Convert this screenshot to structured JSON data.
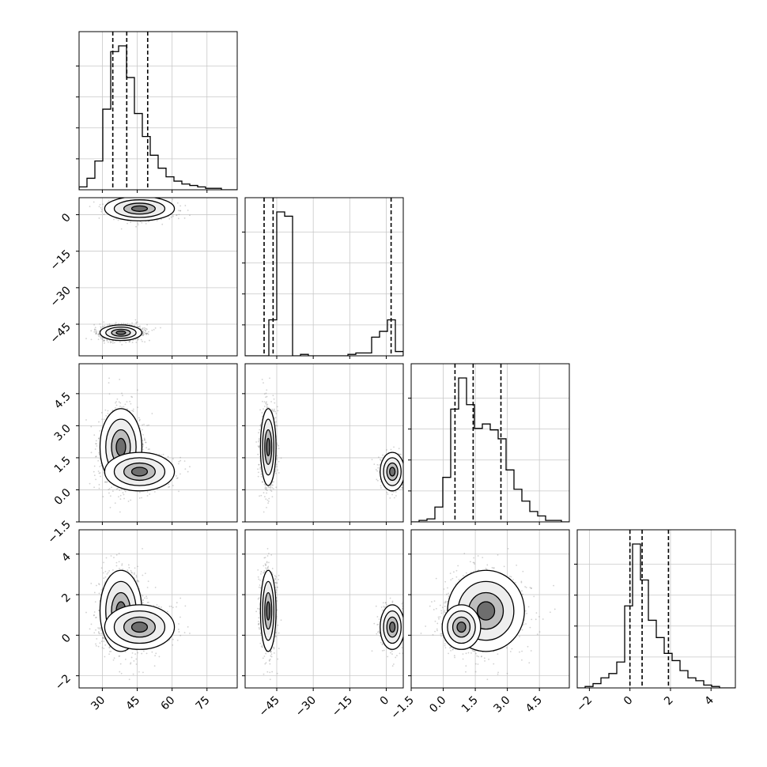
{
  "chart_data": {
    "type": "corner",
    "grid": true,
    "parameters": [
      {
        "index": 0,
        "range": [
          20,
          88
        ],
        "ticks": [
          30,
          45,
          60,
          75
        ],
        "tick_labels": [
          "30",
          "45",
          "60",
          "75"
        ],
        "quantiles": [
          34.5,
          40.5,
          49.5
        ],
        "histogram": {
          "x_start": 20.0,
          "bin_width": 3.4,
          "counts": [
            2,
            8,
            20,
            56,
            96,
            100,
            78,
            53,
            37,
            24,
            15,
            9,
            6,
            4,
            3,
            2,
            1,
            1,
            0,
            0
          ]
        }
      },
      {
        "index": 1,
        "range": [
          -58,
          7
        ],
        "ticks": [
          -45,
          -30,
          -15,
          0
        ],
        "tick_labels": [
          "−45",
          "−30",
          "−15",
          "0"
        ],
        "quantiles": [
          -50.2,
          -46.5,
          2.0
        ],
        "histogram": {
          "x_start": -58.0,
          "bin_width": 3.25,
          "counts": [
            0,
            0,
            0,
            25,
            100,
            97,
            0,
            1,
            0,
            0,
            0,
            0,
            0,
            1,
            2,
            2,
            13,
            17,
            25,
            3
          ]
        }
      },
      {
        "index": 2,
        "range": [
          -1.5,
          5.9
        ],
        "ticks": [
          -1.5,
          0.0,
          1.5,
          3.0,
          4.5
        ],
        "tick_labels": [
          "−1.5",
          "0.0",
          "1.5",
          "3.0",
          "4.5"
        ],
        "quantiles": [
          0.55,
          1.4,
          2.7
        ],
        "histogram": {
          "x_start": -1.5,
          "bin_width": 0.37,
          "counts": [
            0,
            1,
            2,
            10,
            30,
            76,
            97,
            79,
            63,
            66,
            62,
            56,
            35,
            22,
            14,
            7,
            4,
            1,
            1,
            0
          ]
        }
      },
      {
        "index": 3,
        "range": [
          -2.6,
          5.2
        ],
        "ticks": [
          -2,
          0,
          2,
          4
        ],
        "tick_labels": [
          "−2",
          "0",
          "2",
          "4"
        ],
        "quantiles": [
          0.0,
          0.6,
          1.9
        ],
        "histogram": {
          "x_start": -2.6,
          "bin_width": 0.39,
          "counts": [
            0,
            1,
            3,
            7,
            10,
            18,
            57,
            100,
            75,
            47,
            35,
            24,
            19,
            12,
            7,
            5,
            2,
            1,
            0,
            0
          ]
        }
      }
    ],
    "joint_clusters": [
      {
        "weight": 0.7,
        "mean": [
          38.0,
          -48.5,
          2.0,
          1.2
        ],
        "sd": [
          4.5,
          1.6,
          0.9,
          1.0
        ]
      },
      {
        "weight": 0.3,
        "mean": [
          46.0,
          2.5,
          0.85,
          0.4
        ],
        "sd": [
          7.5,
          2.5,
          0.45,
          0.55
        ]
      }
    ]
  }
}
